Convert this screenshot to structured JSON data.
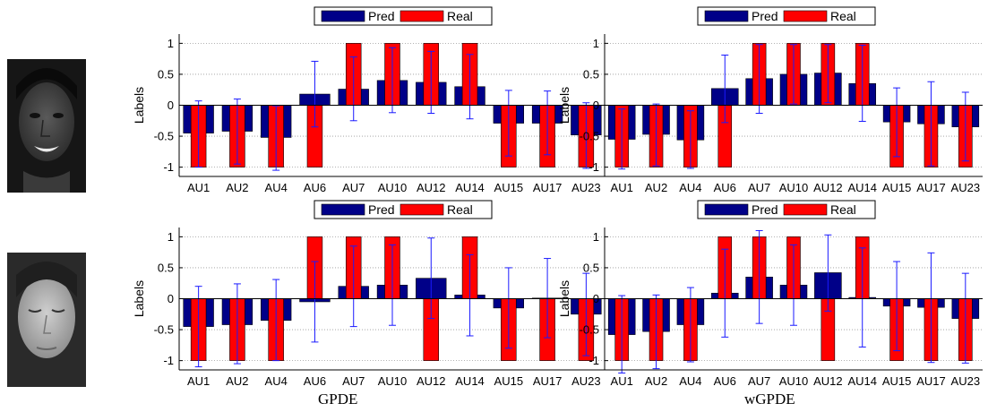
{
  "face_images": [
    {
      "subject": "smiling woman with dark hair"
    },
    {
      "subject": "woman with eyes closed"
    }
  ],
  "captions": [
    "GPDE",
    "wGPDE"
  ],
  "colors": {
    "pred": "#000088",
    "real": "#ff0000",
    "error_bar": "#1a1aff"
  },
  "chart_data": [
    {
      "type": "bar",
      "ylabel": "Labels",
      "ylim": [
        -1.15,
        1.15
      ],
      "yticks": [
        1,
        0.5,
        0,
        -0.5,
        -1
      ],
      "categories": [
        "AU1",
        "AU2",
        "AU4",
        "AU6",
        "AU7",
        "AU10",
        "AU12",
        "AU14",
        "AU15",
        "AU17",
        "AU23"
      ],
      "legend": [
        "Pred",
        "Real"
      ],
      "series": [
        {
          "name": "Pred",
          "values": [
            -0.45,
            -0.42,
            -0.52,
            0.18,
            0.26,
            0.4,
            0.37,
            0.3,
            -0.29,
            -0.29,
            -0.48
          ],
          "err_lo": [
            -1.0,
            -0.95,
            -1.05,
            -0.35,
            -0.25,
            -0.12,
            -0.13,
            -0.22,
            -0.82,
            -0.8,
            -1.02
          ],
          "err_hi": [
            0.07,
            0.1,
            -0.01,
            0.71,
            0.78,
            0.93,
            0.87,
            0.82,
            0.24,
            0.23,
            0.04
          ]
        },
        {
          "name": "Real",
          "values": [
            -1,
            -1,
            -1,
            -1,
            1,
            1,
            1,
            1,
            -1,
            -1,
            -1
          ]
        }
      ]
    },
    {
      "type": "bar",
      "ylabel": "Labels",
      "ylim": [
        -1.15,
        1.15
      ],
      "yticks": [
        1,
        0.5,
        0,
        -0.5,
        -1
      ],
      "categories": [
        "AU1",
        "AU2",
        "AU4",
        "AU6",
        "AU7",
        "AU10",
        "AU12",
        "AU14",
        "AU15",
        "AU17",
        "AU23"
      ],
      "legend": [
        "Pred",
        "Real"
      ],
      "series": [
        {
          "name": "Pred",
          "values": [
            -0.55,
            -0.47,
            -0.56,
            0.27,
            0.43,
            0.5,
            0.52,
            0.35,
            -0.27,
            -0.3,
            -0.35
          ],
          "err_lo": [
            -1.03,
            -0.98,
            -1.02,
            -0.28,
            -0.13,
            0.02,
            0.04,
            -0.26,
            -0.83,
            -0.98,
            -0.9
          ],
          "err_hi": [
            -0.06,
            0.02,
            -0.09,
            0.81,
            0.98,
            0.98,
            0.98,
            0.97,
            0.28,
            0.38,
            0.21
          ]
        },
        {
          "name": "Real",
          "values": [
            -1,
            -1,
            -1,
            -1,
            1,
            1,
            1,
            1,
            -1,
            -1,
            -1
          ]
        }
      ]
    },
    {
      "type": "bar",
      "ylabel": "Labels",
      "ylim": [
        -1.15,
        1.15
      ],
      "yticks": [
        1,
        0.5,
        0,
        -0.5,
        -1
      ],
      "categories": [
        "AU1",
        "AU2",
        "AU4",
        "AU6",
        "AU7",
        "AU10",
        "AU12",
        "AU14",
        "AU15",
        "AU17",
        "AU23"
      ],
      "legend": [
        "Pred",
        "Real"
      ],
      "series": [
        {
          "name": "Pred",
          "values": [
            -0.45,
            -0.42,
            -0.35,
            -0.05,
            0.2,
            0.22,
            0.33,
            0.06,
            -0.15,
            0.01,
            -0.25
          ],
          "err_lo": [
            -1.1,
            -1.05,
            -1.0,
            -0.7,
            -0.45,
            -0.43,
            -0.32,
            -0.6,
            -0.8,
            -0.63,
            -0.92
          ],
          "err_hi": [
            0.2,
            0.24,
            0.31,
            0.6,
            0.85,
            0.87,
            0.98,
            0.71,
            0.5,
            0.65,
            0.41
          ]
        },
        {
          "name": "Real",
          "values": [
            -1,
            -1,
            -1,
            1,
            1,
            1,
            -1,
            1,
            -1,
            -1,
            -1
          ]
        }
      ]
    },
    {
      "type": "bar",
      "ylabel": "Labels",
      "ylim": [
        -1.15,
        1.15
      ],
      "yticks": [
        1,
        0.5,
        0,
        -0.5,
        -1
      ],
      "categories": [
        "AU1",
        "AU2",
        "AU4",
        "AU6",
        "AU7",
        "AU10",
        "AU12",
        "AU14",
        "AU15",
        "AU17",
        "AU23"
      ],
      "legend": [
        "Pred",
        "Real"
      ],
      "series": [
        {
          "name": "Pred",
          "values": [
            -0.58,
            -0.53,
            -0.42,
            0.09,
            0.35,
            0.22,
            0.42,
            0.02,
            -0.12,
            -0.14,
            -0.32
          ],
          "err_lo": [
            -1.2,
            -1.13,
            -1.02,
            -0.62,
            -0.4,
            -0.43,
            -0.2,
            -0.78,
            -0.84,
            -1.03,
            -1.04
          ],
          "err_hi": [
            0.05,
            0.06,
            0.18,
            0.8,
            1.1,
            0.87,
            1.03,
            0.82,
            0.6,
            0.74,
            0.41
          ]
        },
        {
          "name": "Real",
          "values": [
            -1,
            -1,
            -1,
            1,
            1,
            1,
            -1,
            1,
            -1,
            -1,
            -1
          ]
        }
      ]
    }
  ]
}
